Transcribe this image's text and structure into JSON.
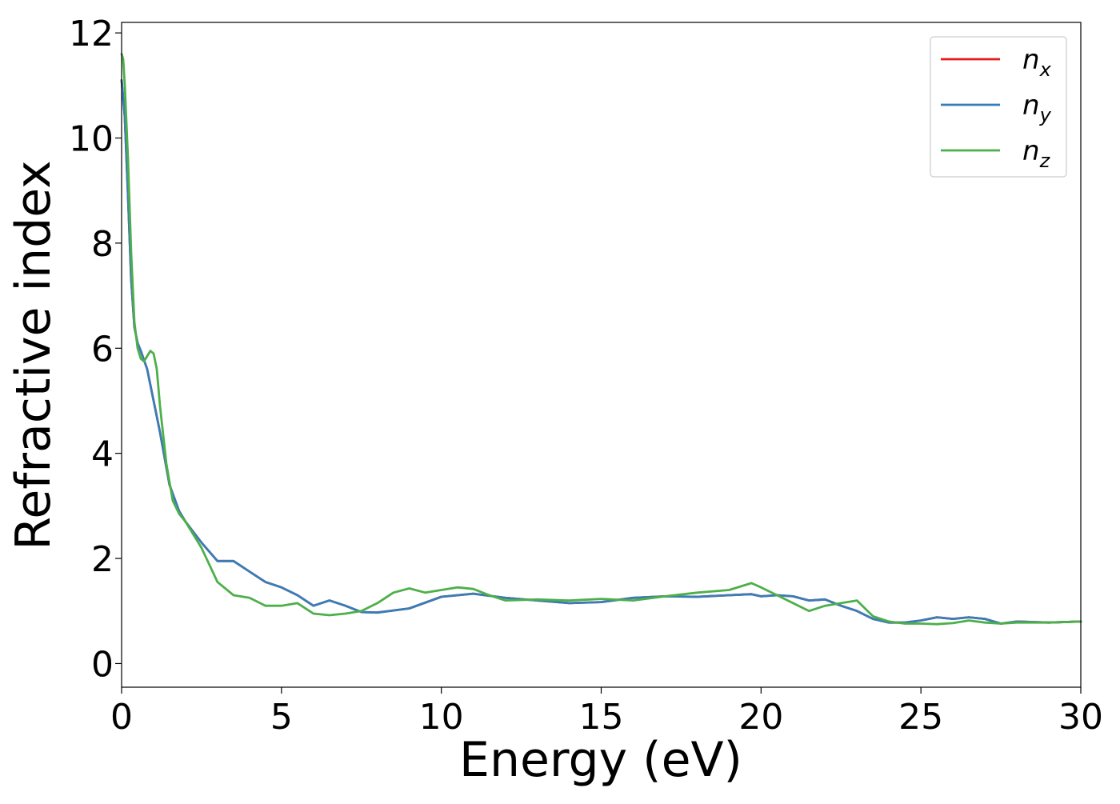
{
  "chart_data": {
    "type": "line",
    "title": "",
    "xlabel": "Energy (eV)",
    "ylabel": "Refractive index",
    "xlim": [
      0,
      30
    ],
    "ylim": [
      -0.45,
      12.2
    ],
    "xticks": [
      0,
      5,
      10,
      15,
      20,
      25,
      30
    ],
    "yticks": [
      0,
      2,
      4,
      6,
      8,
      10,
      12
    ],
    "grid": false,
    "legend_position": "top-right",
    "series": [
      {
        "name": "n_x",
        "label_base": "n",
        "label_sub": "x",
        "color": "#e41a1c",
        "x": [
          0,
          0.1,
          0.2,
          0.3,
          0.4,
          0.5,
          0.6,
          0.8,
          1.0,
          1.2,
          1.5,
          1.8,
          2.0,
          2.5,
          3.0,
          3.5,
          4.0,
          4.5,
          5.0,
          5.5,
          6.0,
          6.5,
          7.0,
          7.5,
          8.0,
          9.0,
          10.0,
          11.0,
          12.0,
          13.0,
          14.0,
          15.0,
          16.0,
          17.0,
          18.0,
          19.0,
          19.7,
          20.0,
          20.5,
          21.0,
          21.5,
          22.0,
          22.5,
          23.0,
          23.5,
          24.0,
          24.5,
          25.0,
          25.5,
          26.0,
          26.5,
          27.0,
          27.5,
          28.0,
          29.0,
          30.0
        ],
        "y": [
          11.1,
          10.4,
          8.9,
          7.3,
          6.4,
          6.1,
          5.95,
          5.6,
          5.0,
          4.4,
          3.4,
          2.9,
          2.7,
          2.3,
          1.95,
          1.95,
          1.75,
          1.55,
          1.45,
          1.3,
          1.1,
          1.2,
          1.1,
          0.98,
          0.97,
          1.05,
          1.27,
          1.33,
          1.25,
          1.2,
          1.15,
          1.17,
          1.25,
          1.28,
          1.27,
          1.3,
          1.32,
          1.28,
          1.3,
          1.28,
          1.2,
          1.22,
          1.1,
          1.0,
          0.85,
          0.78,
          0.78,
          0.82,
          0.88,
          0.85,
          0.88,
          0.85,
          0.76,
          0.8,
          0.78,
          0.8
        ]
      },
      {
        "name": "n_y",
        "label_base": "n",
        "label_sub": "y",
        "color": "#377eb8",
        "x": [
          0,
          0.1,
          0.2,
          0.3,
          0.4,
          0.5,
          0.6,
          0.8,
          1.0,
          1.2,
          1.5,
          1.8,
          2.0,
          2.5,
          3.0,
          3.5,
          4.0,
          4.5,
          5.0,
          5.5,
          6.0,
          6.5,
          7.0,
          7.5,
          8.0,
          9.0,
          10.0,
          11.0,
          12.0,
          13.0,
          14.0,
          15.0,
          16.0,
          17.0,
          18.0,
          19.0,
          19.7,
          20.0,
          20.5,
          21.0,
          21.5,
          22.0,
          22.5,
          23.0,
          23.5,
          24.0,
          24.5,
          25.0,
          25.5,
          26.0,
          26.5,
          27.0,
          27.5,
          28.0,
          29.0,
          30.0
        ],
        "y": [
          11.1,
          10.4,
          8.9,
          7.3,
          6.4,
          6.1,
          5.95,
          5.6,
          5.0,
          4.4,
          3.4,
          2.9,
          2.7,
          2.3,
          1.95,
          1.95,
          1.75,
          1.55,
          1.45,
          1.3,
          1.1,
          1.2,
          1.1,
          0.98,
          0.97,
          1.05,
          1.27,
          1.33,
          1.25,
          1.2,
          1.15,
          1.17,
          1.25,
          1.28,
          1.27,
          1.3,
          1.32,
          1.28,
          1.3,
          1.28,
          1.2,
          1.22,
          1.1,
          1.0,
          0.85,
          0.78,
          0.78,
          0.82,
          0.88,
          0.85,
          0.88,
          0.85,
          0.76,
          0.8,
          0.78,
          0.8
        ]
      },
      {
        "name": "n_z",
        "label_base": "n",
        "label_sub": "z",
        "color": "#4daf4a",
        "x": [
          0,
          0.05,
          0.1,
          0.2,
          0.3,
          0.4,
          0.5,
          0.6,
          0.7,
          0.8,
          0.9,
          1.0,
          1.1,
          1.2,
          1.4,
          1.6,
          1.8,
          2.0,
          2.5,
          3.0,
          3.5,
          4.0,
          4.5,
          5.0,
          5.5,
          6.0,
          6.5,
          7.0,
          7.5,
          8.0,
          8.5,
          9.0,
          9.5,
          10.0,
          10.5,
          11.0,
          11.5,
          12.0,
          13.0,
          14.0,
          15.0,
          16.0,
          17.0,
          18.0,
          19.0,
          19.7,
          20.0,
          20.5,
          21.0,
          21.5,
          22.0,
          22.5,
          23.0,
          23.5,
          24.0,
          24.5,
          25.0,
          25.5,
          26.0,
          26.5,
          27.0,
          27.5,
          28.0,
          29.0,
          30.0
        ],
        "y": [
          11.6,
          11.5,
          11.0,
          9.6,
          7.8,
          6.5,
          6.0,
          5.8,
          5.75,
          5.85,
          5.95,
          5.9,
          5.6,
          4.9,
          3.8,
          3.1,
          2.85,
          2.7,
          2.2,
          1.55,
          1.3,
          1.25,
          1.1,
          1.1,
          1.15,
          0.95,
          0.92,
          0.95,
          1.0,
          1.15,
          1.35,
          1.43,
          1.35,
          1.4,
          1.45,
          1.42,
          1.3,
          1.2,
          1.22,
          1.2,
          1.23,
          1.2,
          1.28,
          1.35,
          1.4,
          1.53,
          1.45,
          1.3,
          1.15,
          1.0,
          1.1,
          1.15,
          1.2,
          0.9,
          0.8,
          0.76,
          0.76,
          0.75,
          0.77,
          0.82,
          0.78,
          0.76,
          0.78,
          0.78,
          0.8
        ]
      }
    ]
  }
}
